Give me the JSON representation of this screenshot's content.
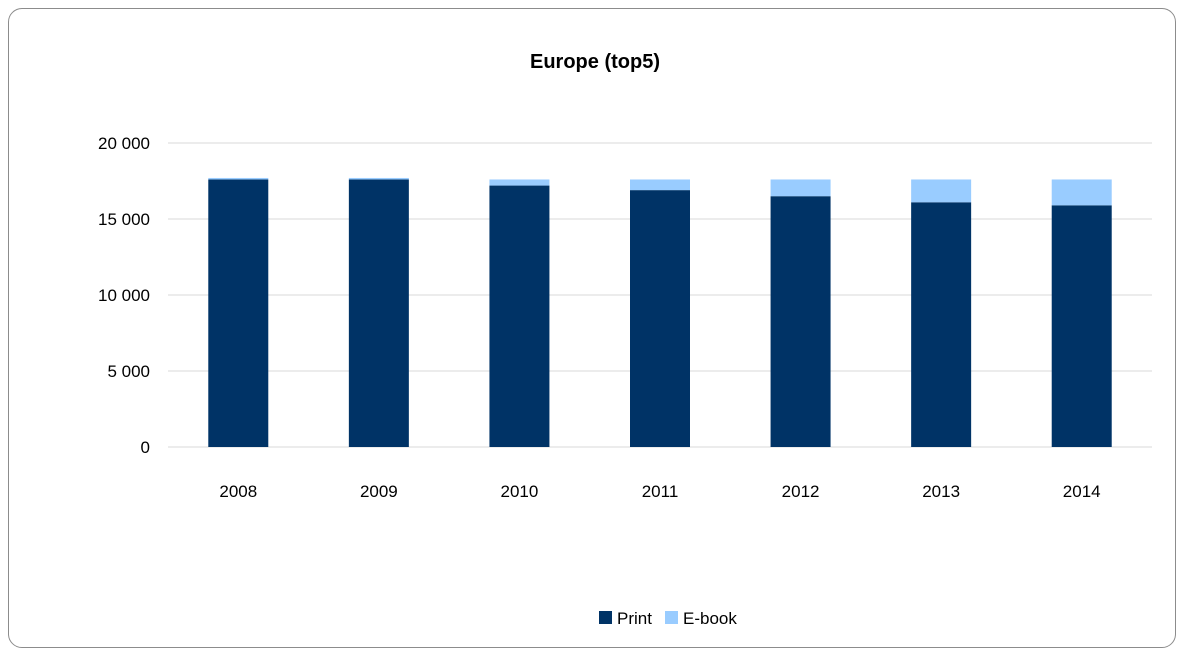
{
  "chart_data": {
    "type": "bar",
    "stacked": true,
    "title": "Europe (top5)",
    "xlabel": "",
    "ylabel": "",
    "categories": [
      "2008",
      "2009",
      "2010",
      "2011",
      "2012",
      "2013",
      "2014"
    ],
    "series": [
      {
        "name": "Print",
        "color": "#003366",
        "values": [
          17600,
          17600,
          17200,
          16900,
          16500,
          16100,
          15900
        ]
      },
      {
        "name": "E-book",
        "color": "#99ccff",
        "values": [
          100,
          100,
          400,
          700,
          1100,
          1500,
          1700
        ]
      }
    ],
    "ylim": [
      0,
      20000
    ],
    "yticks": [
      0,
      5000,
      10000,
      15000,
      20000
    ],
    "ytick_labels": [
      "0",
      "5 000",
      "10 000",
      "15 000",
      "20 000"
    ],
    "grid": true,
    "legend_position": "bottom"
  }
}
